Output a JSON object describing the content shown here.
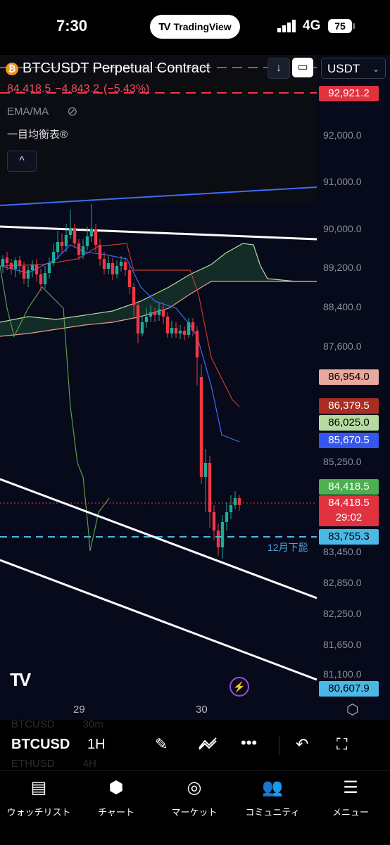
{
  "status_bar": {
    "time": "7:30",
    "pill_label": "TradingView",
    "network": "4G",
    "battery": "75"
  },
  "chart": {
    "symbol": "BTCUSDT Perpetual Contract",
    "last_price": "84,418.5",
    "change": "−4,843.2",
    "change_pct": "(−5.43%)",
    "currency": "USDT",
    "indicators": {
      "ema": "EMA/MA",
      "ichimoku": "一目均衡表®"
    },
    "price_axis": [
      "92,000.0",
      "91,000.0",
      "90,000.0",
      "89,200.0",
      "88,400.0",
      "87,600.0",
      "85,250.0",
      "83,450.0",
      "82,850.0",
      "82,250.0",
      "81,650.0",
      "81,100.0"
    ],
    "price_tags": {
      "top": "92,921.2",
      "t1": "86,954.0",
      "t2": "86,379.5",
      "t3": "86,025.0",
      "t4": "85,670.5",
      "t5": "84,418.5",
      "t6": "84,418.5",
      "countdown": "29:02",
      "t7": "83,755.3",
      "bottom": "80,607.9"
    },
    "horizontal_label": "12月下髭",
    "date_labels": [
      "29",
      "30"
    ],
    "colors": {
      "up": "#22ab94",
      "down": "#f23645",
      "background": "#060a1a"
    }
  },
  "toolbar": {
    "symbol": "BTCUSD",
    "interval": "1H",
    "ghost_rows": [
      {
        "symbol": "BTCUSD",
        "interval": "30m"
      },
      {
        "symbol": "ETHUSD",
        "interval": "4H"
      }
    ]
  },
  "nav": {
    "watchlist": "ウォッチリスト",
    "chart": "チャート",
    "market": "マーケット",
    "community": "コミュニティ",
    "menu": "メニュー"
  }
}
